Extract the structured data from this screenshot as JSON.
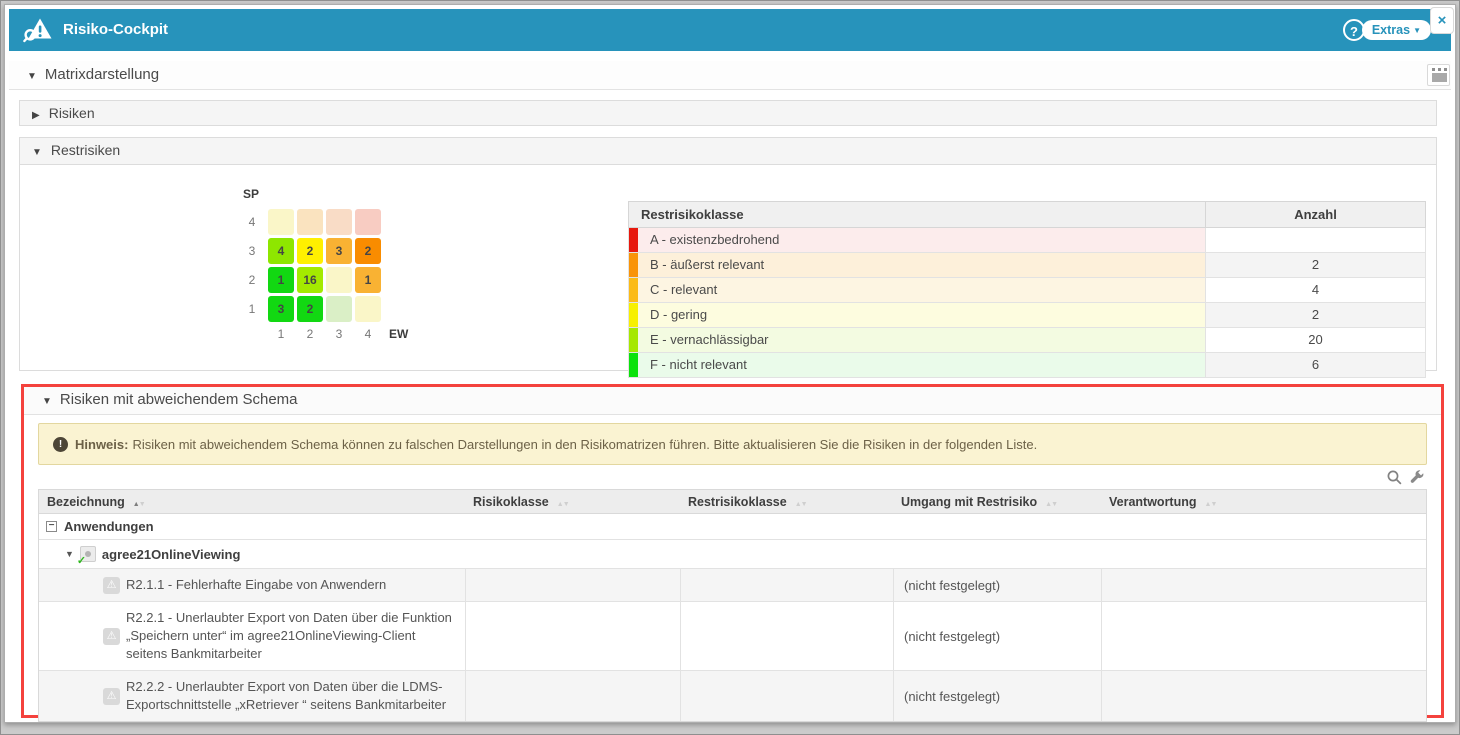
{
  "header": {
    "title": "Risiko-Cockpit",
    "help": "?",
    "extras": "Extras",
    "close": "×"
  },
  "sections": {
    "matrixdarstellung": "Matrixdarstellung",
    "risiken": "Risiken",
    "restrisiken": "Restrisiken",
    "schema": "Risiken mit abweichendem Schema"
  },
  "matrix": {
    "y_label": "SP",
    "x_label": "EW",
    "col_labels": [
      "1",
      "2",
      "3",
      "4"
    ],
    "rows": [
      {
        "label": "4",
        "cells": [
          {
            "value": "",
            "color": "#faf6c8"
          },
          {
            "value": "",
            "color": "#fae3bf"
          },
          {
            "value": "",
            "color": "#f9dcc6"
          },
          {
            "value": "",
            "color": "#f8ccc2"
          }
        ]
      },
      {
        "label": "3",
        "cells": [
          {
            "value": "4",
            "color": "#8ee600"
          },
          {
            "value": "2",
            "color": "#fff000"
          },
          {
            "value": "3",
            "color": "#f9b233"
          },
          {
            "value": "2",
            "color": "#f98c00"
          }
        ]
      },
      {
        "label": "2",
        "cells": [
          {
            "value": "1",
            "color": "#12d812"
          },
          {
            "value": "16",
            "color": "#a4ea00"
          },
          {
            "value": "",
            "color": "#faf6c8"
          },
          {
            "value": "1",
            "color": "#f9b233"
          }
        ]
      },
      {
        "label": "1",
        "cells": [
          {
            "value": "3",
            "color": "#12d812"
          },
          {
            "value": "2",
            "color": "#12d812"
          },
          {
            "value": "",
            "color": "#daefc6"
          },
          {
            "value": "",
            "color": "#faf6c8"
          }
        ]
      }
    ]
  },
  "klassen_table": {
    "headers": {
      "klasse": "Restrisikoklasse",
      "anzahl": "Anzahl"
    },
    "rows": [
      {
        "label": "A - existenzbedrohend",
        "count": "",
        "bar": "#e7190e",
        "tint": "#fcecec",
        "count_bg": "#ffffff"
      },
      {
        "label": "B - äußerst relevant",
        "count": "2",
        "bar": "#f99408",
        "tint": "#fdf0da",
        "count_bg": "#f4f4f4"
      },
      {
        "label": "C - relevant",
        "count": "4",
        "bar": "#fbbb17",
        "tint": "#fdf5e2",
        "count_bg": "#ffffff"
      },
      {
        "label": "D - gering",
        "count": "2",
        "bar": "#f7f000",
        "tint": "#fdfcdf",
        "count_bg": "#f4f4f4"
      },
      {
        "label": "E - vernachlässigbar",
        "count": "20",
        "bar": "#a6e800",
        "tint": "#f3fbe1",
        "count_bg": "#ffffff"
      },
      {
        "label": "F - nicht relevant",
        "count": "6",
        "bar": "#0ce20c",
        "tint": "#eafbea",
        "count_bg": "#f4f4f4"
      }
    ]
  },
  "hint": {
    "label": "Hinweis:",
    "text": "Risiken mit abweichendem Schema können zu falschen Darstellungen in den Risikomatrizen führen. Bitte aktualisieren Sie die Risiken in der folgenden Liste."
  },
  "schema_table": {
    "columns": [
      {
        "label": "Bezeichnung",
        "sorted": true
      },
      {
        "label": "Risikoklasse",
        "sorted": false
      },
      {
        "label": "Restrisikoklasse",
        "sorted": false
      },
      {
        "label": "Umgang mit Restrisiko",
        "sorted": false
      },
      {
        "label": "Verantwortung",
        "sorted": false
      }
    ],
    "group_label": "Anwendungen",
    "app_label": "agree21OnlineViewing",
    "rows": [
      {
        "bezeichnung": "R2.1.1 - Fehlerhafte Eingabe von Anwendern",
        "risikoklasse": "",
        "restrisikoklasse": "",
        "umgang": "(nicht festgelegt)",
        "verantwortung": ""
      },
      {
        "bezeichnung": "R2.2.1 - Unerlaubter Export von Daten über die Funktion „Speichern unter“ im agree21OnlineViewing-Client seitens Bankmitarbeiter",
        "risikoklasse": "",
        "restrisikoklasse": "",
        "umgang": "(nicht festgelegt)",
        "verantwortung": ""
      },
      {
        "bezeichnung": "R2.2.2 - Unerlaubter Export von Daten über die LDMS-Exportschnittstelle „xRetriever “ seitens Bankmitarbeiter",
        "risikoklasse": "",
        "restrisikoklasse": "",
        "umgang": "(nicht festgelegt)",
        "verantwortung": ""
      }
    ]
  },
  "colors": {
    "accent": "#2793bb",
    "highlight_border": "#f4423d",
    "hint_bg": "#faf3d2"
  }
}
